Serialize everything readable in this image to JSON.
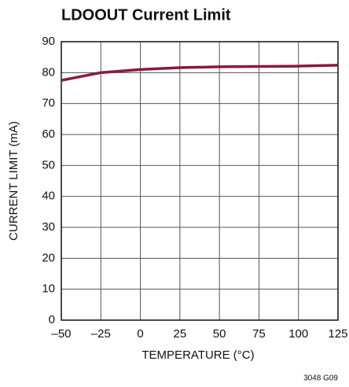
{
  "chart_data": {
    "type": "line",
    "title": "LDOOUT Current Limit",
    "x_label": "TEMPERATURE (°C)",
    "y_label": "CURRENT LIMIT (mA)",
    "note": "3048 G09",
    "x": [
      -50,
      -25,
      0,
      25,
      50,
      75,
      100,
      125
    ],
    "series": [
      {
        "name": "Current limit",
        "color": "#8b1a3a",
        "values": [
          77.5,
          80,
          81,
          81.6,
          81.9,
          82,
          82.1,
          82.4
        ]
      }
    ],
    "xlim": [
      -50,
      125
    ],
    "xticks": [
      {
        "value": -50,
        "label": "–50"
      },
      {
        "value": -25,
        "label": "–25"
      },
      0,
      25,
      50,
      75,
      100,
      125
    ],
    "ylim": [
      0,
      90
    ],
    "yticks": [
      0,
      10,
      20,
      30,
      40,
      50,
      60,
      70,
      80,
      90
    ],
    "grid": true
  }
}
